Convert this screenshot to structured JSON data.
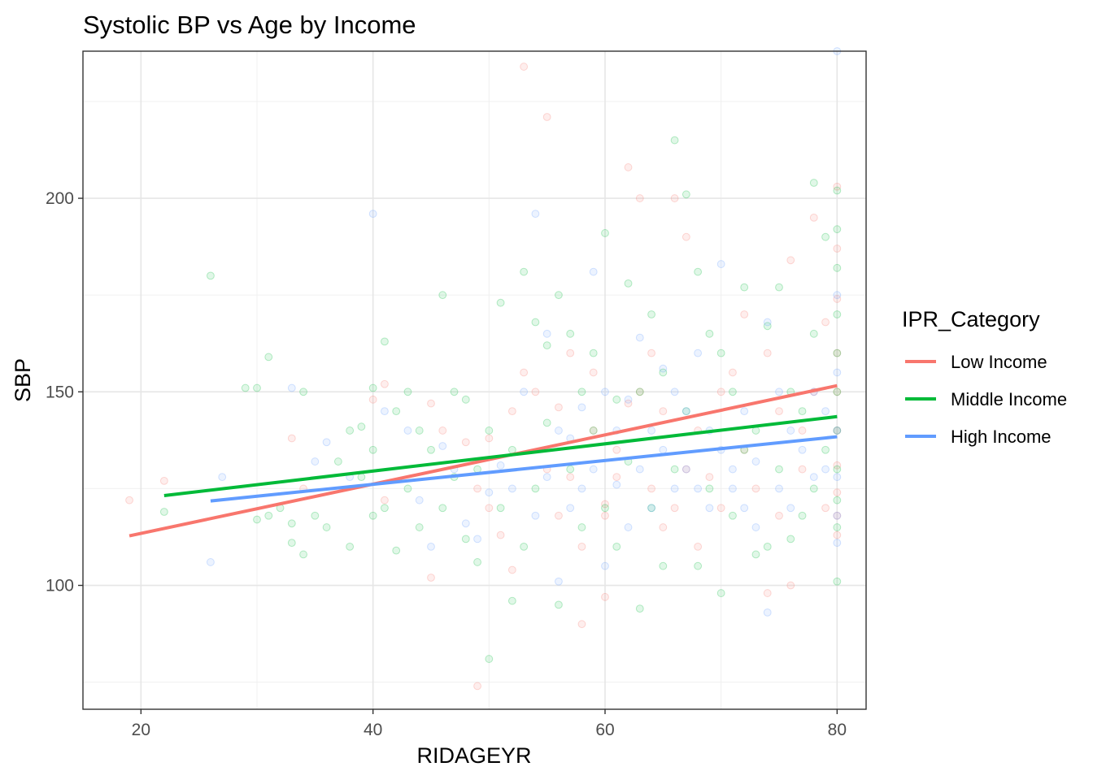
{
  "chart_data": {
    "type": "scatter",
    "title": "Systolic BP vs Age by Income",
    "xlabel": "RIDAGEYR",
    "ylabel": "SBP",
    "xlim": [
      15,
      82.5
    ],
    "ylim": [
      68,
      238
    ],
    "x_ticks": [
      20,
      40,
      60,
      80
    ],
    "x_minor_ticks": [
      30,
      50,
      70
    ],
    "y_ticks": [
      100,
      150,
      200
    ],
    "y_minor_ticks": [
      75,
      125,
      175,
      225
    ],
    "grid": true,
    "legend": {
      "title": "IPR_Category",
      "position": "right",
      "entries": [
        "Low Income",
        "Middle Income",
        "High Income"
      ]
    },
    "series": [
      {
        "name": "Low Income",
        "color": "#F8766D",
        "trend": {
          "x": [
            19,
            80
          ],
          "y": [
            112.8,
            151.6
          ]
        },
        "points": [
          [
            19,
            122
          ],
          [
            22,
            127
          ],
          [
            33,
            138
          ],
          [
            34,
            125
          ],
          [
            40,
            148
          ],
          [
            41,
            152
          ],
          [
            41,
            122
          ],
          [
            45,
            102
          ],
          [
            45,
            147
          ],
          [
            46,
            140
          ],
          [
            48,
            137
          ],
          [
            49,
            74
          ],
          [
            49,
            125
          ],
          [
            50,
            120
          ],
          [
            50,
            138
          ],
          [
            51,
            113
          ],
          [
            52,
            104
          ],
          [
            52,
            145
          ],
          [
            53,
            234
          ],
          [
            53,
            155
          ],
          [
            54,
            150
          ],
          [
            55,
            221
          ],
          [
            55,
            130
          ],
          [
            56,
            146
          ],
          [
            56,
            118
          ],
          [
            57,
            160
          ],
          [
            57,
            128
          ],
          [
            58,
            90
          ],
          [
            58,
            110
          ],
          [
            59,
            155
          ],
          [
            59,
            140
          ],
          [
            60,
            121
          ],
          [
            60,
            97
          ],
          [
            60,
            118
          ],
          [
            61,
            128
          ],
          [
            61,
            135
          ],
          [
            62,
            208
          ],
          [
            62,
            147
          ],
          [
            63,
            200
          ],
          [
            63,
            150
          ],
          [
            64,
            125
          ],
          [
            64,
            160
          ],
          [
            65,
            115
          ],
          [
            65,
            145
          ],
          [
            66,
            200
          ],
          [
            66,
            120
          ],
          [
            67,
            190
          ],
          [
            67,
            130
          ],
          [
            68,
            140
          ],
          [
            68,
            110
          ],
          [
            69,
            128
          ],
          [
            70,
            150
          ],
          [
            70,
            120
          ],
          [
            71,
            155
          ],
          [
            72,
            170
          ],
          [
            72,
            135
          ],
          [
            73,
            125
          ],
          [
            74,
            160
          ],
          [
            74,
            98
          ],
          [
            75,
            145
          ],
          [
            75,
            118
          ],
          [
            76,
            184
          ],
          [
            76,
            100
          ],
          [
            77,
            140
          ],
          [
            77,
            130
          ],
          [
            78,
            195
          ],
          [
            78,
            150
          ],
          [
            79,
            168
          ],
          [
            79,
            120
          ],
          [
            80,
            203
          ],
          [
            80,
            187
          ],
          [
            80,
            174
          ],
          [
            80,
            160
          ],
          [
            80,
            150
          ],
          [
            80,
            140
          ],
          [
            80,
            131
          ],
          [
            80,
            124
          ],
          [
            80,
            118
          ],
          [
            80,
            113
          ]
        ]
      },
      {
        "name": "Middle Income",
        "color": "#00BA38",
        "trend": {
          "x": [
            22,
            80
          ],
          "y": [
            123.2,
            143.6
          ]
        },
        "points": [
          [
            22,
            119
          ],
          [
            26,
            180
          ],
          [
            29,
            151
          ],
          [
            30,
            151
          ],
          [
            30,
            117
          ],
          [
            31,
            159
          ],
          [
            31,
            118
          ],
          [
            32,
            120
          ],
          [
            33,
            111
          ],
          [
            33,
            116
          ],
          [
            34,
            150
          ],
          [
            34,
            108
          ],
          [
            35,
            118
          ],
          [
            36,
            115
          ],
          [
            37,
            132
          ],
          [
            38,
            110
          ],
          [
            38,
            140
          ],
          [
            39,
            141
          ],
          [
            39,
            128
          ],
          [
            40,
            151
          ],
          [
            40,
            135
          ],
          [
            40,
            118
          ],
          [
            41,
            120
          ],
          [
            41,
            163
          ],
          [
            42,
            145
          ],
          [
            42,
            109
          ],
          [
            43,
            150
          ],
          [
            43,
            125
          ],
          [
            44,
            115
          ],
          [
            44,
            140
          ],
          [
            45,
            135
          ],
          [
            46,
            175
          ],
          [
            46,
            120
          ],
          [
            47,
            150
          ],
          [
            47,
            128
          ],
          [
            48,
            112
          ],
          [
            48,
            148
          ],
          [
            49,
            106
          ],
          [
            49,
            130
          ],
          [
            50,
            140
          ],
          [
            50,
            81
          ],
          [
            51,
            173
          ],
          [
            51,
            120
          ],
          [
            52,
            96
          ],
          [
            52,
            135
          ],
          [
            53,
            181
          ],
          [
            53,
            110
          ],
          [
            54,
            168
          ],
          [
            54,
            125
          ],
          [
            55,
            162
          ],
          [
            55,
            142
          ],
          [
            56,
            175
          ],
          [
            56,
            95
          ],
          [
            57,
            165
          ],
          [
            57,
            130
          ],
          [
            58,
            150
          ],
          [
            58,
            115
          ],
          [
            59,
            160
          ],
          [
            59,
            140
          ],
          [
            60,
            191
          ],
          [
            60,
            120
          ],
          [
            61,
            148
          ],
          [
            61,
            110
          ],
          [
            62,
            178
          ],
          [
            62,
            132
          ],
          [
            63,
            150
          ],
          [
            63,
            94
          ],
          [
            64,
            170
          ],
          [
            64,
            120
          ],
          [
            65,
            155
          ],
          [
            65,
            105
          ],
          [
            66,
            215
          ],
          [
            66,
            130
          ],
          [
            67,
            201
          ],
          [
            67,
            145
          ],
          [
            68,
            181
          ],
          [
            68,
            105
          ],
          [
            69,
            165
          ],
          [
            69,
            125
          ],
          [
            70,
            160
          ],
          [
            70,
            98
          ],
          [
            71,
            150
          ],
          [
            71,
            118
          ],
          [
            72,
            177
          ],
          [
            72,
            135
          ],
          [
            73,
            140
          ],
          [
            73,
            108
          ],
          [
            74,
            167
          ],
          [
            74,
            110
          ],
          [
            75,
            177
          ],
          [
            75,
            130
          ],
          [
            76,
            150
          ],
          [
            76,
            112
          ],
          [
            77,
            145
          ],
          [
            77,
            118
          ],
          [
            78,
            204
          ],
          [
            78,
            165
          ],
          [
            78,
            125
          ],
          [
            79,
            190
          ],
          [
            79,
            135
          ],
          [
            80,
            202
          ],
          [
            80,
            192
          ],
          [
            80,
            182
          ],
          [
            80,
            170
          ],
          [
            80,
            160
          ],
          [
            80,
            150
          ],
          [
            80,
            140
          ],
          [
            80,
            130
          ],
          [
            80,
            122
          ],
          [
            80,
            115
          ],
          [
            80,
            101
          ]
        ]
      },
      {
        "name": "High Income",
        "color": "#619CFF",
        "trend": {
          "x": [
            26,
            80
          ],
          "y": [
            121.8,
            138.4
          ]
        },
        "points": [
          [
            26,
            106
          ],
          [
            27,
            128
          ],
          [
            33,
            151
          ],
          [
            35,
            132
          ],
          [
            36,
            137
          ],
          [
            38,
            128
          ],
          [
            40,
            196
          ],
          [
            41,
            145
          ],
          [
            43,
            140
          ],
          [
            44,
            122
          ],
          [
            45,
            110
          ],
          [
            46,
            136
          ],
          [
            47,
            130
          ],
          [
            48,
            116
          ],
          [
            49,
            112
          ],
          [
            50,
            124
          ],
          [
            51,
            131
          ],
          [
            52,
            125
          ],
          [
            53,
            150
          ],
          [
            54,
            196
          ],
          [
            54,
            118
          ],
          [
            55,
            165
          ],
          [
            55,
            128
          ],
          [
            56,
            101
          ],
          [
            56,
            140
          ],
          [
            57,
            138
          ],
          [
            57,
            120
          ],
          [
            58,
            146
          ],
          [
            58,
            125
          ],
          [
            59,
            181
          ],
          [
            59,
            130
          ],
          [
            60,
            150
          ],
          [
            60,
            105
          ],
          [
            61,
            140
          ],
          [
            61,
            126
          ],
          [
            62,
            148
          ],
          [
            62,
            115
          ],
          [
            63,
            164
          ],
          [
            63,
            130
          ],
          [
            64,
            140
          ],
          [
            64,
            120
          ],
          [
            65,
            156
          ],
          [
            65,
            135
          ],
          [
            66,
            150
          ],
          [
            66,
            125
          ],
          [
            67,
            145
          ],
          [
            67,
            130
          ],
          [
            68,
            160
          ],
          [
            68,
            125
          ],
          [
            69,
            140
          ],
          [
            69,
            120
          ],
          [
            70,
            183
          ],
          [
            70,
            135
          ],
          [
            71,
            130
          ],
          [
            71,
            125
          ],
          [
            72,
            120
          ],
          [
            72,
            145
          ],
          [
            73,
            132
          ],
          [
            73,
            115
          ],
          [
            74,
            168
          ],
          [
            74,
            93
          ],
          [
            75,
            125
          ],
          [
            75,
            150
          ],
          [
            76,
            140
          ],
          [
            76,
            120
          ],
          [
            77,
            135
          ],
          [
            78,
            150
          ],
          [
            78,
            128
          ],
          [
            79,
            130
          ],
          [
            79,
            145
          ],
          [
            80,
            238
          ],
          [
            80,
            175
          ],
          [
            80,
            155
          ],
          [
            80,
            140
          ],
          [
            80,
            128
          ],
          [
            80,
            118
          ],
          [
            80,
            111
          ]
        ]
      }
    ]
  }
}
